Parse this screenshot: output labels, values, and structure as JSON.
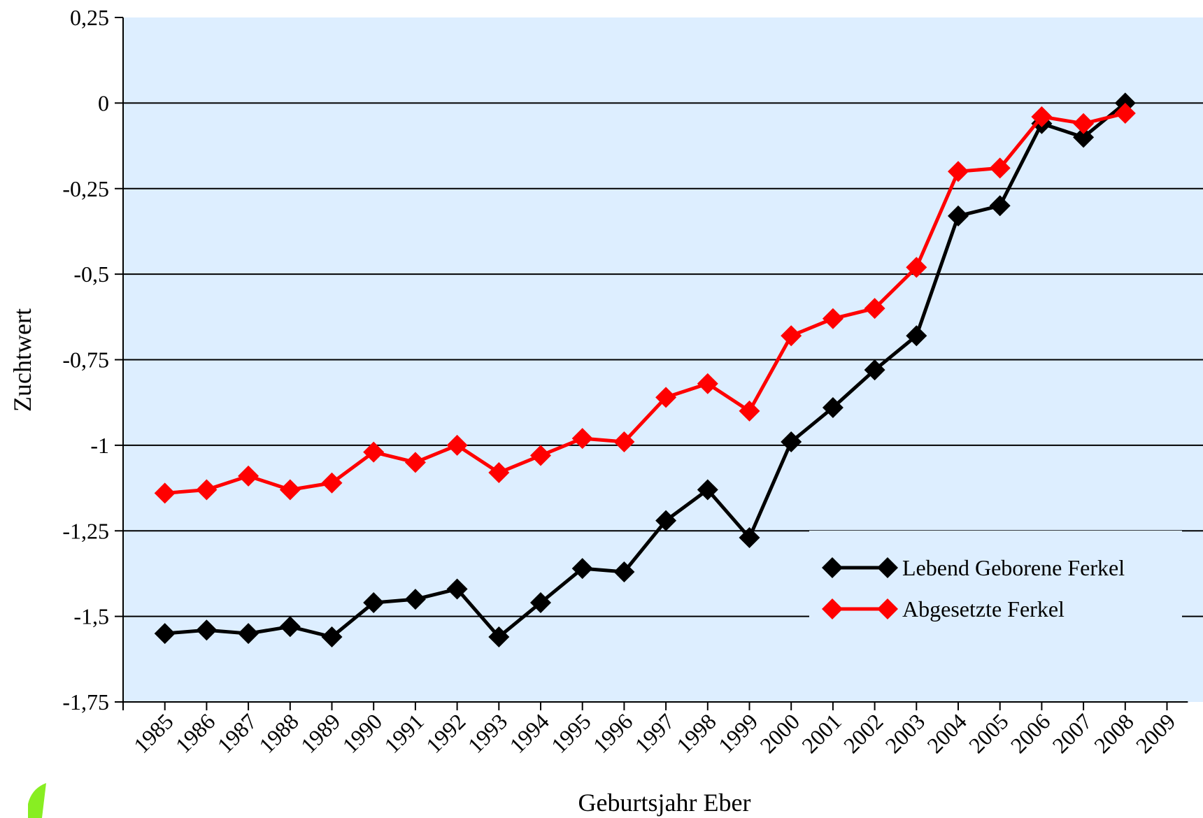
{
  "chart_data": {
    "type": "line",
    "x_label": "Geburtsjahr Eber",
    "y_label": "Zuchtwert",
    "categories": [
      "1985",
      "1986",
      "1987",
      "1988",
      "1989",
      "1990",
      "1991",
      "1992",
      "1993",
      "1994",
      "1995",
      "1996",
      "1997",
      "1998",
      "1999",
      "2000",
      "2001",
      "2002",
      "2003",
      "2004",
      "2005",
      "2006",
      "2007",
      "2008",
      "2009"
    ],
    "series": [
      {
        "name": "Lebend Geborene Ferkel",
        "color": "#000000",
        "values": [
          -1.55,
          -1.54,
          -1.55,
          -1.53,
          -1.56,
          -1.46,
          -1.45,
          -1.42,
          -1.56,
          -1.46,
          -1.36,
          -1.37,
          -1.22,
          -1.13,
          -1.27,
          -0.99,
          -0.89,
          -0.78,
          -0.68,
          -0.33,
          -0.3,
          -0.06,
          -0.1,
          0.0,
          null
        ]
      },
      {
        "name": "Abgesetzte Ferkel",
        "color": "#ff0000",
        "values": [
          -1.14,
          -1.13,
          -1.09,
          -1.13,
          -1.11,
          -1.02,
          -1.05,
          -1.0,
          -1.08,
          -1.03,
          -0.98,
          -0.99,
          -0.86,
          -0.82,
          -0.9,
          -0.68,
          -0.63,
          -0.6,
          -0.48,
          -0.2,
          -0.19,
          -0.04,
          -0.06,
          -0.03,
          null
        ]
      }
    ],
    "ylim": [
      -1.75,
      0.25
    ],
    "yticks": [
      {
        "value": -1.75,
        "label": "-1,75"
      },
      {
        "value": -1.5,
        "label": "-1,5"
      },
      {
        "value": -1.25,
        "label": "-1,25"
      },
      -1,
      {
        "value": -0.75,
        "label": "-0,75"
      },
      {
        "value": -0.5,
        "label": "-0,5"
      },
      {
        "value": -0.25,
        "label": "-0,25"
      },
      0,
      {
        "value": 0.25,
        "label": "0,25"
      }
    ],
    "grid": true,
    "plot_background": "#ddeeff",
    "legend_position": "lower right"
  }
}
